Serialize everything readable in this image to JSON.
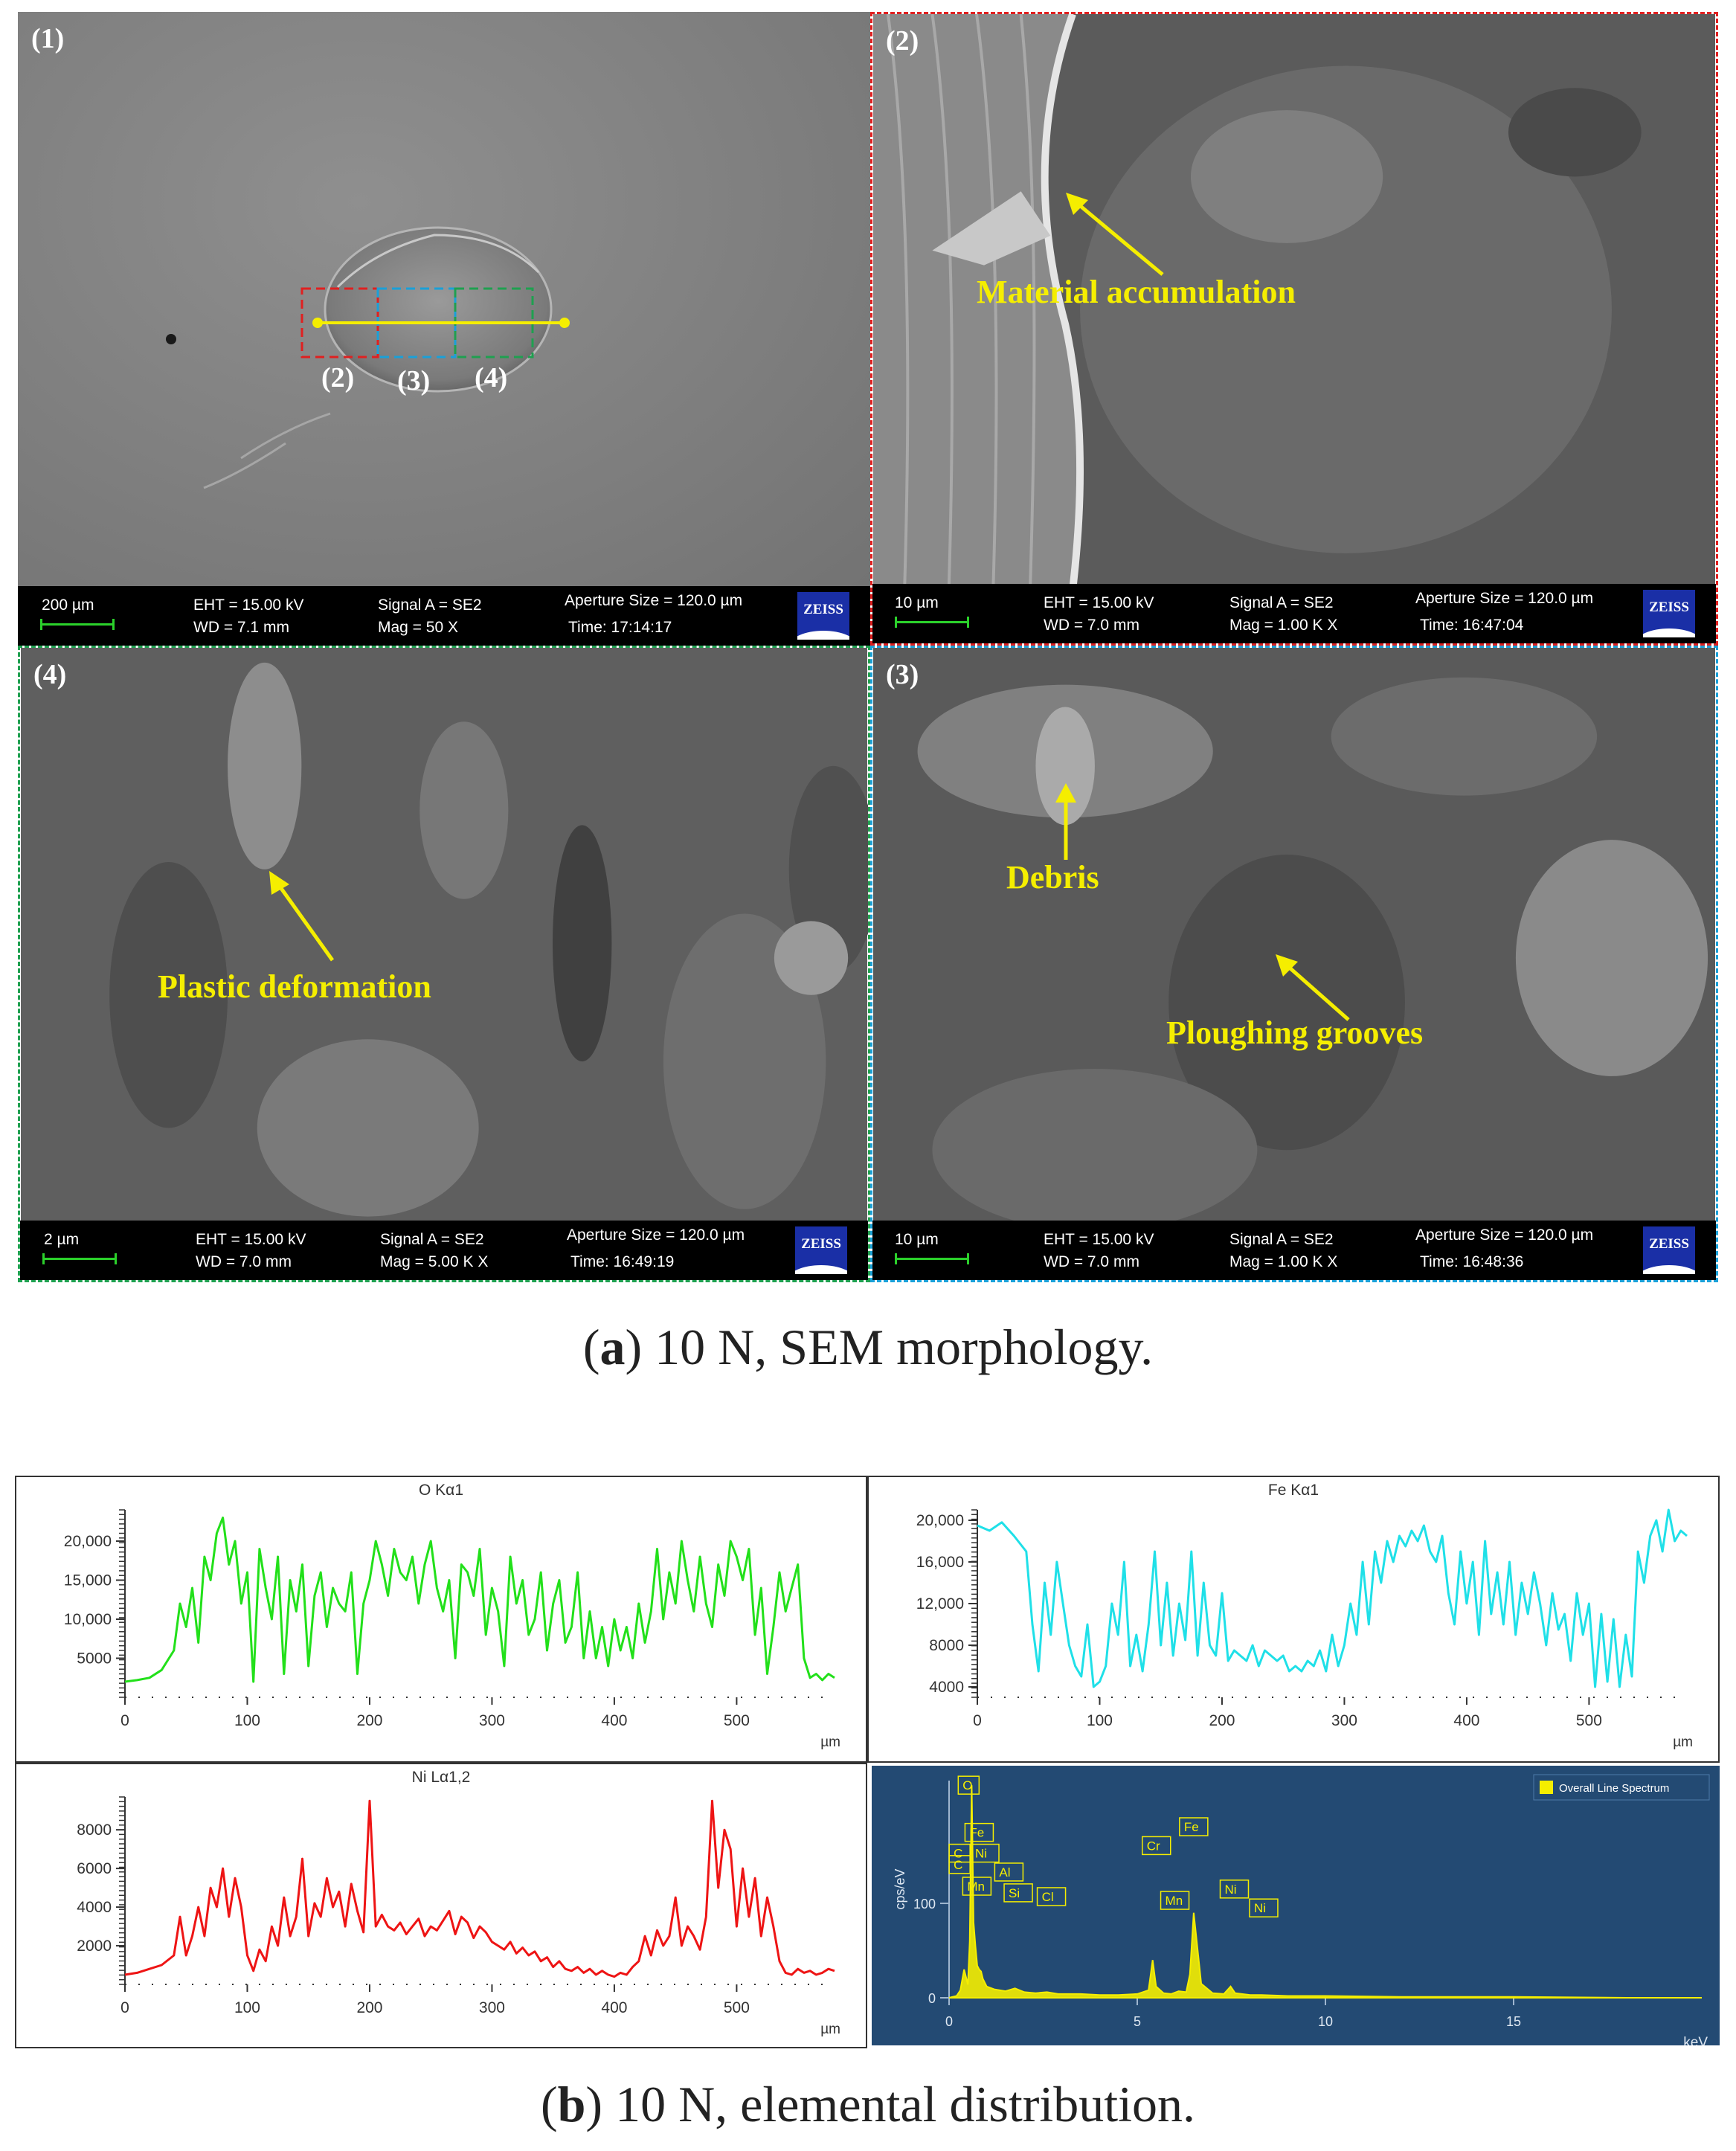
{
  "figure_a": {
    "caption_letter": "a",
    "caption_rest": ") 10 N, SEM morphology.",
    "caption_open": "(",
    "panel1": {
      "label": "(1)",
      "region_labels": [
        "(2)",
        "(3)",
        "(4)"
      ],
      "scale": "200 µm",
      "eht": "EHT = 15.00 kV",
      "wd": "WD =  7.1 mm",
      "signal": "Signal A = SE2",
      "mag": "Mag =    50 X",
      "aperture": "Aperture Size = 120.0 µm",
      "time": "Time: 17:14:17",
      "logo": "ZEISS"
    },
    "panel2": {
      "label": "(2)",
      "annotation": "Material accumulation",
      "scale": "10 µm",
      "eht": "EHT = 15.00 kV",
      "wd": "WD =  7.0 mm",
      "signal": "Signal A = SE2",
      "mag": "Mag =    1.00 K X",
      "aperture": "Aperture Size = 120.0 µm",
      "time": "Time: 16:47:04",
      "logo": "ZEISS"
    },
    "panel4": {
      "label": "(4)",
      "annotation": "Plastic deformation",
      "scale": "2 µm",
      "eht": "EHT = 15.00 kV",
      "wd": "WD =  7.0 mm",
      "signal": "Signal A = SE2",
      "mag": "Mag =    5.00 K X",
      "aperture": "Aperture Size = 120.0 µm",
      "time": "Time: 16:49:19",
      "logo": "ZEISS"
    },
    "panel3": {
      "label": "(3)",
      "annotation1": "Debris",
      "annotation2": "Ploughing grooves",
      "scale": "10 µm",
      "eht": "EHT = 15.00 kV",
      "wd": "WD =  7.0 mm",
      "signal": "Signal A = SE2",
      "mag": "Mag =    1.00 K X",
      "aperture": "Aperture Size = 120.0 µm",
      "time": "Time: 16:48:36",
      "logo": "ZEISS"
    },
    "colors": {
      "red_box": "#e02020",
      "blue_box": "#1aa0d8",
      "green_box": "#1fa050",
      "annotation": "#f5ee00"
    }
  },
  "figure_b": {
    "caption_open": "(",
    "caption_letter": "b",
    "caption_rest": ") 10 N, elemental distribution."
  },
  "chart_data": [
    {
      "type": "line",
      "title": "O Kα1",
      "xlabel": "µm",
      "ylabel": "",
      "xlim": [
        0,
        580
      ],
      "ylim": [
        0,
        24000
      ],
      "xticks": [
        0,
        100,
        200,
        300,
        400,
        500
      ],
      "yticks": [
        5000,
        10000,
        15000,
        20000
      ],
      "ytick_labels": [
        "5000",
        "10,000",
        "15,000",
        "20,000"
      ],
      "color": "#22e01a",
      "x": [
        0,
        10,
        20,
        30,
        40,
        45,
        50,
        55,
        60,
        65,
        70,
        75,
        80,
        85,
        90,
        95,
        100,
        105,
        110,
        115,
        120,
        125,
        130,
        135,
        140,
        145,
        150,
        155,
        160,
        165,
        170,
        175,
        180,
        185,
        190,
        195,
        200,
        205,
        210,
        215,
        220,
        225,
        230,
        235,
        240,
        245,
        250,
        255,
        260,
        265,
        270,
        275,
        280,
        285,
        290,
        295,
        300,
        305,
        310,
        315,
        320,
        325,
        330,
        335,
        340,
        345,
        350,
        355,
        360,
        365,
        370,
        375,
        380,
        385,
        390,
        395,
        400,
        405,
        410,
        415,
        420,
        425,
        430,
        435,
        440,
        445,
        450,
        455,
        460,
        465,
        470,
        475,
        480,
        485,
        490,
        495,
        500,
        505,
        510,
        515,
        520,
        525,
        530,
        535,
        540,
        545,
        550,
        555,
        560,
        565,
        570,
        575,
        580
      ],
      "y": [
        2000,
        2200,
        2500,
        3500,
        6000,
        12000,
        9000,
        14000,
        7000,
        18000,
        15000,
        21000,
        23000,
        17000,
        20000,
        12000,
        16000,
        2000,
        19000,
        14000,
        10000,
        18000,
        3000,
        15000,
        11000,
        17000,
        4000,
        13000,
        16000,
        9000,
        14000,
        12000,
        11000,
        16000,
        3000,
        12000,
        15000,
        20000,
        17000,
        13000,
        19000,
        16000,
        15000,
        18000,
        12000,
        17000,
        20000,
        14000,
        11000,
        15000,
        5000,
        17000,
        16000,
        13000,
        19000,
        8000,
        14000,
        11000,
        4000,
        18000,
        12000,
        15000,
        8000,
        10000,
        16000,
        6000,
        12000,
        15000,
        7000,
        9000,
        16000,
        5000,
        11000,
        5000,
        9000,
        4000,
        10000,
        6000,
        9000,
        5000,
        12000,
        7000,
        11000,
        19000,
        10000,
        16000,
        12000,
        20000,
        15000,
        11000,
        18000,
        12000,
        9000,
        17000,
        13000,
        20000,
        18000,
        15000,
        19000,
        8000,
        14000,
        3000,
        9000,
        16000,
        11000,
        14000,
        17000,
        5000,
        2500,
        3000,
        2200,
        3000,
        2500
      ]
    },
    {
      "type": "line",
      "title": "Fe Kα1",
      "xlabel": "µm",
      "ylabel": "",
      "xlim": [
        0,
        580
      ],
      "ylim": [
        3000,
        21000
      ],
      "xticks": [
        0,
        100,
        200,
        300,
        400,
        500
      ],
      "yticks": [
        4000,
        8000,
        12000,
        16000,
        20000
      ],
      "ytick_labels": [
        "4000",
        "8000",
        "12,000",
        "16,000",
        "20,000"
      ],
      "color": "#1fe0e8",
      "x": [
        0,
        10,
        20,
        30,
        40,
        45,
        50,
        55,
        60,
        65,
        70,
        75,
        80,
        85,
        90,
        95,
        100,
        105,
        110,
        115,
        120,
        125,
        130,
        135,
        140,
        145,
        150,
        155,
        160,
        165,
        170,
        175,
        180,
        185,
        190,
        195,
        200,
        205,
        210,
        215,
        220,
        225,
        230,
        235,
        240,
        245,
        250,
        255,
        260,
        265,
        270,
        275,
        280,
        285,
        290,
        295,
        300,
        305,
        310,
        315,
        320,
        325,
        330,
        335,
        340,
        345,
        350,
        355,
        360,
        365,
        370,
        375,
        380,
        385,
        390,
        395,
        400,
        405,
        410,
        415,
        420,
        425,
        430,
        435,
        440,
        445,
        450,
        455,
        460,
        465,
        470,
        475,
        480,
        485,
        490,
        495,
        500,
        505,
        510,
        515,
        520,
        525,
        530,
        535,
        540,
        545,
        550,
        555,
        560,
        565,
        570,
        575,
        580
      ],
      "y": [
        19500,
        19000,
        19800,
        18500,
        17000,
        10000,
        5500,
        14000,
        9000,
        16000,
        12000,
        8000,
        6000,
        5000,
        10000,
        4000,
        4500,
        6000,
        12000,
        9000,
        16000,
        6000,
        9000,
        5500,
        10000,
        17000,
        8000,
        14000,
        7000,
        12000,
        8500,
        17000,
        7000,
        14000,
        8000,
        7000,
        13000,
        6500,
        7500,
        7000,
        6500,
        8000,
        6000,
        7500,
        7000,
        6500,
        7000,
        5500,
        6000,
        5500,
        6500,
        6000,
        7500,
        5500,
        9000,
        6000,
        8000,
        12000,
        9000,
        16000,
        10000,
        17000,
        14000,
        18000,
        16000,
        18500,
        17500,
        19000,
        18000,
        19500,
        17000,
        16000,
        18500,
        13000,
        10000,
        17000,
        12000,
        16000,
        9000,
        18000,
        11000,
        15000,
        10000,
        16000,
        9000,
        14000,
        11000,
        15000,
        12000,
        8000,
        13000,
        9500,
        11000,
        6500,
        13000,
        9000,
        12000,
        4000,
        11000,
        4500,
        10500,
        4000,
        9000,
        5000,
        17000,
        14000,
        18500,
        20000,
        17000,
        21000,
        18000,
        19000,
        18500
      ]
    },
    {
      "type": "line",
      "title": "Ni Lα1,2",
      "xlabel": "µm",
      "ylabel": "",
      "xlim": [
        0,
        580
      ],
      "ylim": [
        0,
        9700
      ],
      "xticks": [
        0,
        100,
        200,
        300,
        400,
        500
      ],
      "yticks": [
        2000,
        4000,
        6000,
        8000
      ],
      "ytick_labels": [
        "2000",
        "4000",
        "6000",
        "8000"
      ],
      "color": "#ee1414",
      "x": [
        0,
        10,
        20,
        30,
        40,
        45,
        50,
        55,
        60,
        65,
        70,
        75,
        80,
        85,
        90,
        95,
        100,
        105,
        110,
        115,
        120,
        125,
        130,
        135,
        140,
        145,
        150,
        155,
        160,
        165,
        170,
        175,
        180,
        185,
        190,
        195,
        200,
        205,
        210,
        215,
        220,
        225,
        230,
        235,
        240,
        245,
        250,
        255,
        260,
        265,
        270,
        275,
        280,
        285,
        290,
        295,
        300,
        305,
        310,
        315,
        320,
        325,
        330,
        335,
        340,
        345,
        350,
        355,
        360,
        365,
        370,
        375,
        380,
        385,
        390,
        395,
        400,
        405,
        410,
        415,
        420,
        425,
        430,
        435,
        440,
        445,
        450,
        455,
        460,
        465,
        470,
        475,
        480,
        485,
        490,
        495,
        500,
        505,
        510,
        515,
        520,
        525,
        530,
        535,
        540,
        545,
        550,
        555,
        560,
        565,
        570,
        575,
        580
      ],
      "y": [
        500,
        600,
        800,
        1000,
        1500,
        3500,
        1500,
        2500,
        4000,
        2500,
        5000,
        4000,
        6000,
        3500,
        5500,
        4000,
        1500,
        700,
        1800,
        1200,
        3000,
        2000,
        4500,
        2500,
        3500,
        6500,
        2500,
        4200,
        3500,
        5500,
        4000,
        4800,
        3000,
        5200,
        3800,
        2700,
        9500,
        3000,
        3600,
        3000,
        2800,
        3200,
        2600,
        3000,
        3400,
        2500,
        3000,
        2800,
        3300,
        3800,
        2600,
        3500,
        3200,
        2400,
        3000,
        2700,
        2200,
        2000,
        1800,
        2200,
        1600,
        1900,
        1500,
        1700,
        1200,
        1400,
        900,
        1200,
        800,
        700,
        900,
        600,
        800,
        500,
        700,
        500,
        400,
        600,
        500,
        900,
        1200,
        2500,
        1500,
        2800,
        2000,
        2500,
        4500,
        2000,
        3000,
        2500,
        1800,
        3500,
        9500,
        5000,
        8000,
        7000,
        3000,
        6000,
        3500,
        5500,
        2500,
        4500,
        3000,
        1200,
        600,
        500,
        800,
        600,
        700,
        500,
        600,
        800,
        700
      ]
    },
    {
      "type": "line",
      "title": "",
      "xlabel": "keV",
      "ylabel": "cps/eV",
      "xlim": [
        0,
        20
      ],
      "ylim": [
        0,
        230
      ],
      "xticks": [
        0,
        5,
        10,
        15
      ],
      "yticks": [
        0,
        100
      ],
      "legend": [
        "Overall Line Spectrum"
      ],
      "legend_position": "top-right",
      "color": "#f5ee00",
      "background": "#234a73",
      "x": [
        0.0,
        0.2,
        0.3,
        0.4,
        0.5,
        0.55,
        0.6,
        0.65,
        0.7,
        0.75,
        0.8,
        0.85,
        0.9,
        1.0,
        1.2,
        1.5,
        1.75,
        2.0,
        2.3,
        2.6,
        2.9,
        3.5,
        4.0,
        4.5,
        5.0,
        5.3,
        5.41,
        5.5,
        5.7,
        5.9,
        6.1,
        6.3,
        6.4,
        6.5,
        6.7,
        7.0,
        7.3,
        7.48,
        7.6,
        8.0,
        8.3,
        9.0,
        10,
        12,
        15,
        18,
        20
      ],
      "y": [
        0,
        2,
        8,
        30,
        14,
        60,
        225,
        80,
        55,
        34,
        30,
        28,
        20,
        12,
        9,
        7,
        10,
        6,
        5,
        6,
        4,
        4,
        3,
        3,
        4,
        8,
        40,
        12,
        5,
        4,
        7,
        6,
        25,
        90,
        15,
        5,
        4,
        12,
        5,
        3,
        3,
        2,
        2,
        1,
        1,
        0,
        0
      ],
      "peak_labels": [
        {
          "label": "O",
          "x": 0.52
        },
        {
          "label": "Fe",
          "x": 0.7
        },
        {
          "label": "C",
          "x": 0.28
        },
        {
          "label": "Ni",
          "x": 0.85
        },
        {
          "label": "C",
          "x": 0.28
        },
        {
          "label": "Mn",
          "x": 0.64
        },
        {
          "label": "Al",
          "x": 1.49
        },
        {
          "label": "Si",
          "x": 1.74
        },
        {
          "label": "Cl",
          "x": 2.62
        },
        {
          "label": "Cr",
          "x": 5.41
        },
        {
          "label": "Mn",
          "x": 5.9
        },
        {
          "label": "Fe",
          "x": 6.4
        },
        {
          "label": "Ni",
          "x": 7.48
        },
        {
          "label": "Ni",
          "x": 8.26
        }
      ]
    }
  ]
}
